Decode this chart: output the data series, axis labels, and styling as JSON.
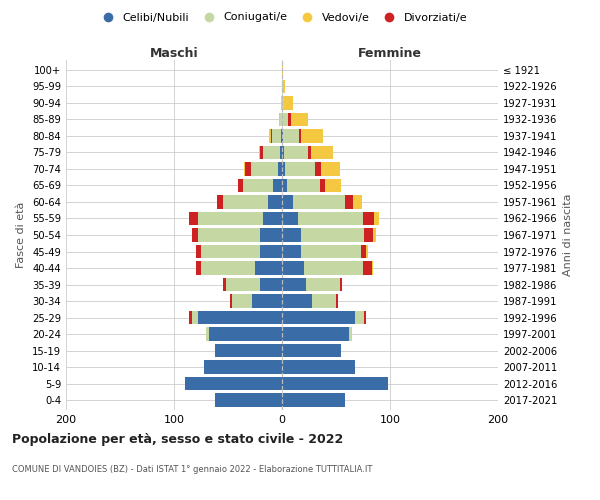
{
  "age_groups": [
    "0-4",
    "5-9",
    "10-14",
    "15-19",
    "20-24",
    "25-29",
    "30-34",
    "35-39",
    "40-44",
    "45-49",
    "50-54",
    "55-59",
    "60-64",
    "65-69",
    "70-74",
    "75-79",
    "80-84",
    "85-89",
    "90-94",
    "95-99",
    "100+"
  ],
  "birth_years": [
    "2017-2021",
    "2012-2016",
    "2007-2011",
    "2002-2006",
    "1997-2001",
    "1992-1996",
    "1987-1991",
    "1982-1986",
    "1977-1981",
    "1972-1976",
    "1967-1971",
    "1962-1966",
    "1957-1961",
    "1952-1956",
    "1947-1951",
    "1942-1946",
    "1937-1941",
    "1932-1936",
    "1927-1931",
    "1922-1926",
    "≤ 1921"
  ],
  "males": {
    "celibi": [
      62,
      90,
      72,
      62,
      68,
      78,
      28,
      20,
      25,
      20,
      20,
      18,
      13,
      8,
      4,
      2,
      1,
      0,
      0,
      0,
      0
    ],
    "coniugati": [
      0,
      0,
      0,
      0,
      2,
      5,
      18,
      32,
      50,
      55,
      58,
      60,
      42,
      28,
      25,
      16,
      8,
      2,
      1,
      0,
      0
    ],
    "vedovi": [
      0,
      0,
      0,
      0,
      0,
      0,
      0,
      0,
      0,
      0,
      0,
      0,
      0,
      0,
      1,
      1,
      2,
      1,
      0,
      0,
      0
    ],
    "divorziati": [
      0,
      0,
      0,
      0,
      0,
      3,
      2,
      3,
      5,
      5,
      5,
      8,
      5,
      5,
      5,
      2,
      1,
      0,
      0,
      0,
      0
    ]
  },
  "females": {
    "nubili": [
      58,
      98,
      68,
      55,
      62,
      68,
      28,
      22,
      20,
      18,
      18,
      15,
      10,
      5,
      3,
      2,
      1,
      0,
      0,
      0,
      0
    ],
    "coniugate": [
      0,
      0,
      0,
      0,
      3,
      8,
      22,
      32,
      55,
      55,
      58,
      60,
      48,
      30,
      28,
      22,
      15,
      6,
      2,
      1,
      0
    ],
    "vedove": [
      0,
      0,
      0,
      0,
      0,
      0,
      0,
      0,
      1,
      2,
      3,
      5,
      8,
      15,
      18,
      20,
      20,
      16,
      8,
      2,
      1
    ],
    "divorziate": [
      0,
      0,
      0,
      0,
      0,
      2,
      2,
      2,
      8,
      5,
      8,
      10,
      8,
      5,
      5,
      3,
      2,
      2,
      0,
      0,
      0
    ]
  },
  "colors": {
    "celibi": "#3a6ca8",
    "coniugati": "#c5d8a4",
    "vedovi": "#f5c842",
    "divorziati": "#cc2222"
  },
  "xlim": 200,
  "title": "Popolazione per età, sesso e stato civile - 2022",
  "subtitle": "COMUNE DI VANDOIES (BZ) - Dati ISTAT 1° gennaio 2022 - Elaborazione TUTTITALIA.IT",
  "ylabel_left": "Fasce di età",
  "ylabel_right": "Anni di nascita",
  "xlabel_left": "Maschi",
  "xlabel_right": "Femmine",
  "background_color": "#ffffff",
  "legend_labels": [
    "Celibi/Nubili",
    "Coniugati/e",
    "Vedovi/e",
    "Divorziati/e"
  ]
}
